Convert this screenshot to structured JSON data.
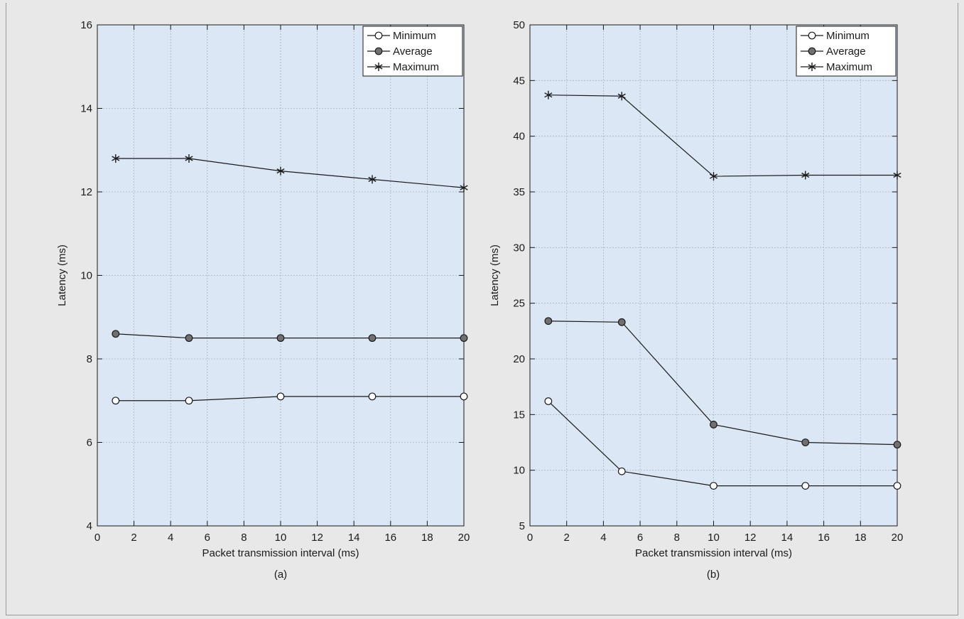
{
  "chart_data": [
    {
      "type": "line",
      "caption": "(a)",
      "xlabel": "Packet transmission interval (ms)",
      "ylabel": "Latency (ms)",
      "xlim": [
        0,
        20
      ],
      "ylim": [
        4,
        16
      ],
      "xticks": [
        0,
        2,
        4,
        6,
        8,
        10,
        12,
        14,
        16,
        18,
        20
      ],
      "yticks": [
        4,
        6,
        8,
        10,
        12,
        14,
        16
      ],
      "grid": true,
      "legend_position": "top-right",
      "x": [
        1,
        5,
        10,
        15,
        20
      ],
      "series": [
        {
          "name": "Minimum",
          "marker": "open-circle",
          "values": [
            7.0,
            7.0,
            7.1,
            7.1,
            7.1
          ]
        },
        {
          "name": "Average",
          "marker": "filled-circle",
          "values": [
            8.6,
            8.5,
            8.5,
            8.5,
            8.5
          ]
        },
        {
          "name": "Maximum",
          "marker": "asterisk",
          "values": [
            12.8,
            12.8,
            12.5,
            12.3,
            12.1
          ]
        }
      ]
    },
    {
      "type": "line",
      "caption": "(b)",
      "xlabel": "Packet transmission interval (ms)",
      "ylabel": "Latency (ms)",
      "xlim": [
        0,
        20
      ],
      "ylim": [
        5,
        50
      ],
      "xticks": [
        0,
        2,
        4,
        6,
        8,
        10,
        12,
        14,
        16,
        18,
        20
      ],
      "yticks": [
        5,
        10,
        15,
        20,
        25,
        30,
        35,
        40,
        45,
        50
      ],
      "grid": true,
      "legend_position": "top-right",
      "x": [
        1,
        5,
        10,
        15,
        20
      ],
      "series": [
        {
          "name": "Minimum",
          "marker": "open-circle",
          "values": [
            16.2,
            9.9,
            8.6,
            8.6,
            8.6
          ]
        },
        {
          "name": "Average",
          "marker": "filled-circle",
          "values": [
            23.4,
            23.3,
            14.1,
            12.5,
            12.3
          ]
        },
        {
          "name": "Maximum",
          "marker": "asterisk",
          "values": [
            43.7,
            43.6,
            36.4,
            36.5,
            36.5
          ]
        }
      ]
    }
  ],
  "colors": {
    "plot_background": "#dbe7f4",
    "grid": "#a9b4c0",
    "line": "#1a1a1a",
    "filled_marker": "#707070",
    "open_marker": "#ffffff"
  }
}
